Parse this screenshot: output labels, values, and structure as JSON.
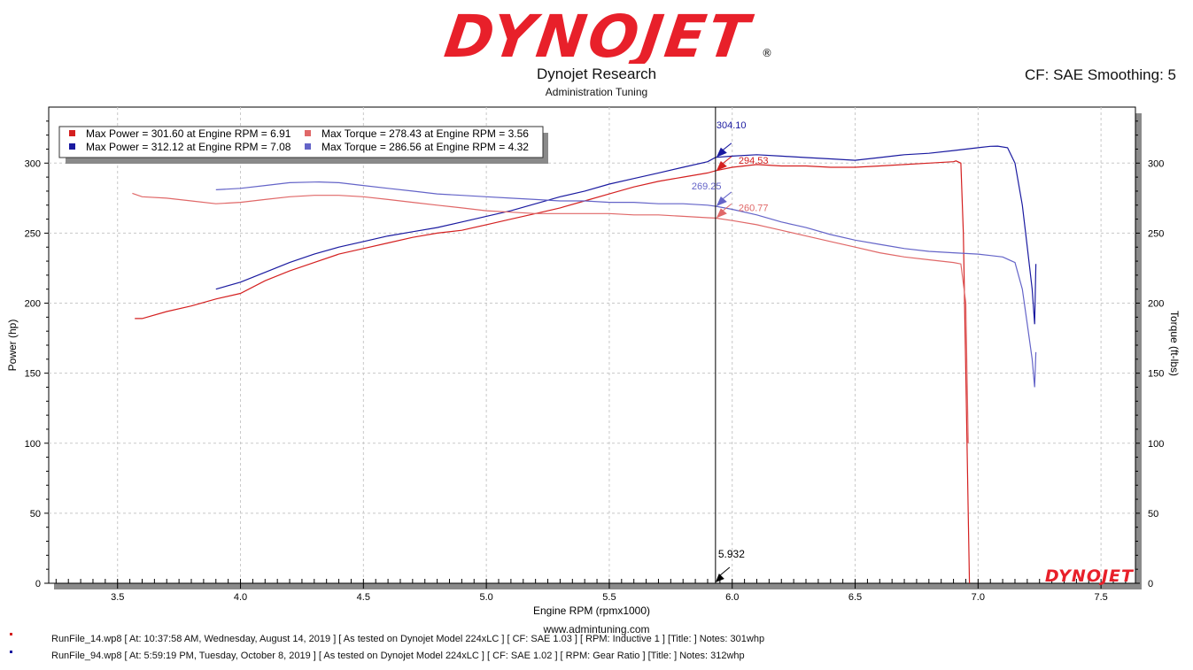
{
  "header": {
    "logo_text": "DYNOJET",
    "logo_mark": "®",
    "company": "Dynojet Research",
    "subtitle": "Administration Tuning",
    "cf_text": "CF: SAE Smoothing: 5"
  },
  "colors": {
    "run1_power": "#d42020",
    "run2_power": "#1a1aa0",
    "run1_torque": "#e06868",
    "run2_torque": "#6464c8",
    "logo_red": "#e8202a",
    "logo_black": "#111111"
  },
  "legend": [
    {
      "text": "Max Power = 301.60 at Engine RPM = 6.91",
      "color_key": "run1_power"
    },
    {
      "text": "Max Torque = 278.43 at Engine RPM = 3.56",
      "color_key": "run1_torque"
    },
    {
      "text": "Max Power = 312.12 at Engine RPM = 7.08",
      "color_key": "run2_power"
    },
    {
      "text": "Max Torque = 286.56 at Engine RPM = 4.32",
      "color_key": "run2_torque"
    }
  ],
  "cursor": {
    "x": 5.932,
    "label": "5.932",
    "readouts": [
      {
        "value": "304.10",
        "color_key": "run2_power",
        "y": 304.1
      },
      {
        "value": "294.53",
        "color_key": "run1_power",
        "y": 294.53
      },
      {
        "value": "269.25",
        "color_key": "run2_torque",
        "y": 269.25
      },
      {
        "value": "260.77",
        "color_key": "run1_torque",
        "y": 260.77
      }
    ]
  },
  "watermark": "DYNOJET",
  "footer": {
    "website": "www.admintuning.com",
    "runs": [
      {
        "text": "RunFile_14.wp8 [ At: 10:37:58 AM, Wednesday, August 14, 2019 ] [ As tested on Dynojet Model 224xLC ] [ CF: SAE 1.03 ] [ RPM: Inductive 1 ] [Title: ]  Notes: 301whp",
        "color_key": "run1_power"
      },
      {
        "text": "RunFile_94.wp8 [ At: 5:59:19 PM, Tuesday, October 8, 2019 ] [ As tested on Dynojet Model 224xLC ] [ CF: SAE 1.02 ] [ RPM: Gear Ratio ] [Title: ]  Notes: 312whp",
        "color_key": "run2_power"
      }
    ]
  },
  "chart_data": {
    "type": "line",
    "title": "Dynojet Research",
    "subtitle": "Administration Tuning",
    "xlabel": "Engine RPM (rpmx1000)",
    "ylabel": "Power (hp)",
    "y2label": "Torque (ft-lbs)",
    "xlim": [
      3.22,
      7.64
    ],
    "ylim": [
      0,
      340
    ],
    "y2lim": [
      0,
      340
    ],
    "xticks": [
      3.5,
      4.0,
      4.5,
      5.0,
      5.5,
      6.0,
      6.5,
      7.0,
      7.5
    ],
    "xticklabels": [
      "3.5",
      "4.0",
      "4.5",
      "5.0",
      "5.5",
      "6.0",
      "6.5",
      "7.0",
      "7.5"
    ],
    "yticks": [
      0,
      50,
      100,
      150,
      200,
      250,
      300
    ],
    "yticklabels": [
      "0",
      "50",
      "100",
      "150",
      "200",
      "250",
      "300"
    ],
    "grid": true,
    "legend_position": "top-left",
    "series": [
      {
        "name": "Max Power = 301.60 at Engine RPM = 6.91",
        "axis": "left",
        "color_key": "run1_power",
        "x": [
          3.57,
          3.6,
          3.7,
          3.8,
          3.9,
          4.0,
          4.1,
          4.2,
          4.3,
          4.4,
          4.5,
          4.6,
          4.7,
          4.8,
          4.9,
          5.0,
          5.1,
          5.2,
          5.3,
          5.4,
          5.5,
          5.6,
          5.7,
          5.8,
          5.9,
          5.932,
          6.0,
          6.1,
          6.2,
          6.3,
          6.4,
          6.5,
          6.6,
          6.7,
          6.8,
          6.9,
          6.91,
          6.93,
          6.94,
          6.95,
          6.96,
          6.965
        ],
        "y": [
          189,
          189,
          194,
          198,
          203,
          207,
          216,
          223,
          229,
          235,
          239,
          243,
          247,
          250,
          252,
          256,
          260,
          264,
          268,
          273,
          278,
          283,
          287,
          290,
          293,
          294.53,
          297,
          299,
          298,
          298,
          297,
          297,
          298,
          299,
          300,
          301,
          301.6,
          300,
          250,
          150,
          50,
          0
        ]
      },
      {
        "name": "Max Power = 312.12 at Engine RPM = 7.08",
        "axis": "left",
        "color_key": "run2_power",
        "x": [
          3.9,
          4.0,
          4.1,
          4.2,
          4.3,
          4.4,
          4.5,
          4.6,
          4.7,
          4.8,
          4.9,
          5.0,
          5.1,
          5.2,
          5.3,
          5.4,
          5.5,
          5.6,
          5.7,
          5.8,
          5.9,
          5.932,
          6.0,
          6.1,
          6.2,
          6.3,
          6.4,
          6.5,
          6.6,
          6.7,
          6.8,
          6.9,
          7.0,
          7.05,
          7.08,
          7.12,
          7.15,
          7.18,
          7.2,
          7.22,
          7.23,
          7.235
        ],
        "y": [
          210,
          215,
          222,
          229,
          235,
          240,
          244,
          248,
          251,
          254,
          258,
          262,
          266,
          271,
          276,
          280,
          285,
          289,
          293,
          297,
          301,
          304.1,
          305,
          306,
          305,
          304,
          303,
          302,
          304,
          306,
          307,
          309,
          311,
          312,
          312.12,
          311,
          300,
          270,
          240,
          210,
          185,
          228
        ]
      },
      {
        "name": "Max Torque = 278.43 at Engine RPM = 3.56",
        "axis": "right",
        "color_key": "run1_torque",
        "x": [
          3.56,
          3.6,
          3.7,
          3.8,
          3.9,
          4.0,
          4.1,
          4.2,
          4.3,
          4.4,
          4.5,
          4.6,
          4.7,
          4.8,
          4.9,
          5.0,
          5.1,
          5.2,
          5.3,
          5.4,
          5.5,
          5.6,
          5.7,
          5.8,
          5.9,
          5.932,
          6.0,
          6.1,
          6.2,
          6.3,
          6.4,
          6.5,
          6.6,
          6.7,
          6.8,
          6.9,
          6.93,
          6.95,
          6.96
        ],
        "y": [
          278.43,
          276,
          275,
          273,
          271,
          272,
          274,
          276,
          277,
          277,
          276,
          274,
          272,
          270,
          268,
          266,
          265,
          264,
          264,
          264,
          264,
          263,
          263,
          262,
          261,
          260.77,
          259,
          256,
          252,
          248,
          244,
          240,
          236,
          233,
          231,
          229,
          228,
          200,
          100
        ]
      },
      {
        "name": "Max Torque = 286.56 at Engine RPM = 4.32",
        "axis": "right",
        "color_key": "run2_torque",
        "x": [
          3.9,
          4.0,
          4.1,
          4.2,
          4.3,
          4.32,
          4.4,
          4.5,
          4.6,
          4.7,
          4.8,
          4.9,
          5.0,
          5.1,
          5.2,
          5.3,
          5.4,
          5.5,
          5.6,
          5.7,
          5.8,
          5.9,
          5.932,
          6.0,
          6.1,
          6.2,
          6.3,
          6.4,
          6.5,
          6.6,
          6.7,
          6.8,
          6.9,
          7.0,
          7.05,
          7.1,
          7.15,
          7.18,
          7.2,
          7.22,
          7.23,
          7.235
        ],
        "y": [
          281,
          282,
          284,
          286,
          286.5,
          286.56,
          286,
          284,
          282,
          280,
          278,
          277,
          276,
          275,
          274,
          273,
          273,
          272,
          272,
          271,
          271,
          270,
          269.25,
          267,
          263,
          258,
          254,
          249,
          245,
          242,
          239,
          237,
          236,
          235,
          234,
          233,
          229,
          210,
          185,
          160,
          140,
          165
        ]
      }
    ]
  }
}
